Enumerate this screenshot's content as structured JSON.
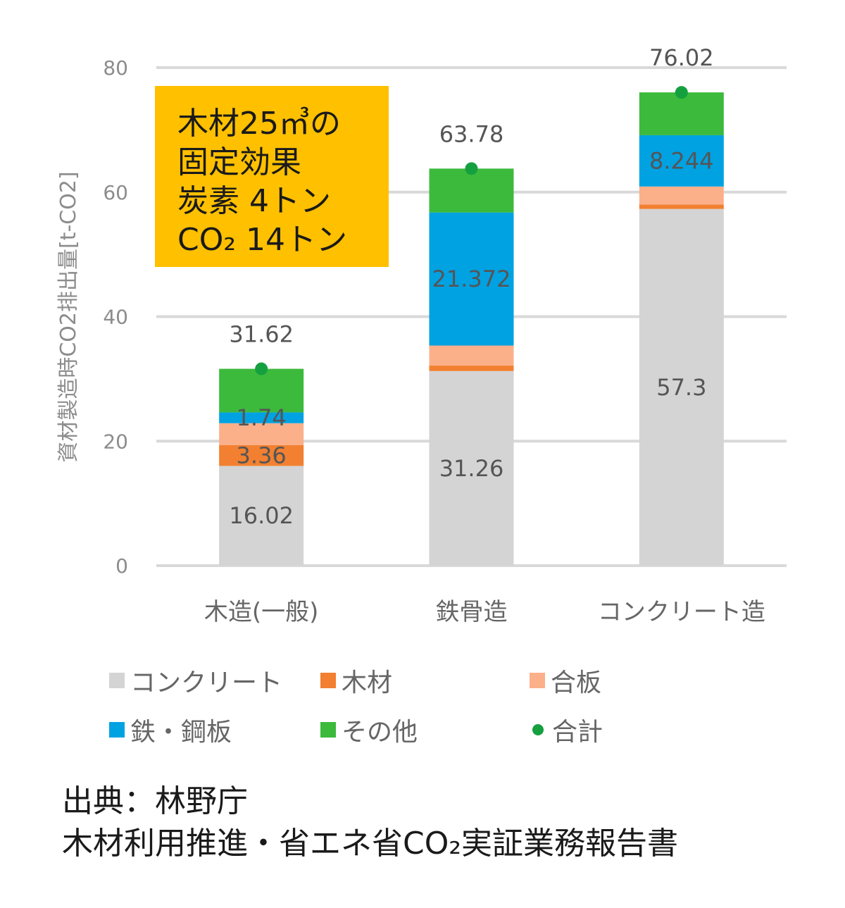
{
  "chart_data": {
    "type": "bar",
    "stacked": true,
    "categories": [
      "木造(一般)",
      "鉄骨造",
      "コンクリート造"
    ],
    "ylabel": "資材製造時CO2排出量[t-CO2]",
    "ylim": [
      0,
      80
    ],
    "yticks": [
      0,
      20,
      40,
      60,
      80
    ],
    "grid": true,
    "legend_position": "bottom",
    "series": [
      {
        "name": "コンクリート",
        "color": "#d4d4d4",
        "values": [
          16.02,
          31.26,
          57.3
        ],
        "labels": [
          "16.02",
          "31.26",
          "57.3"
        ]
      },
      {
        "name": "木材",
        "color": "#f28030",
        "values": [
          3.36,
          0.9,
          0.7
        ],
        "labels": [
          "3.36",
          "",
          ""
        ]
      },
      {
        "name": "合板",
        "color": "#fbb08a",
        "values": [
          3.5,
          3.2,
          2.9
        ],
        "labels": [
          "",
          "",
          ""
        ]
      },
      {
        "name": "鉄・鋼板",
        "color": "#00a2e2",
        "values": [
          1.74,
          21.372,
          8.244
        ],
        "labels": [
          "1.74",
          "21.372",
          "8.244"
        ]
      },
      {
        "name": "その他",
        "color": "#3cba3c",
        "values": [
          7.0,
          7.05,
          6.88
        ],
        "labels": [
          "",
          "",
          ""
        ]
      }
    ],
    "totals": {
      "name": "合計",
      "color": "#15a040",
      "values": [
        31.62,
        63.78,
        76.02
      ],
      "labels": [
        "31.62",
        "63.78",
        "76.02"
      ]
    }
  },
  "callout": {
    "lines": [
      "木材25㎥の",
      "固定効果",
      "炭素 4トン",
      "CO₂ 14トン"
    ]
  },
  "source": {
    "lines": [
      "出典：林野庁",
      "木材利用推進・省エネ省CO₂実証業務報告書"
    ]
  }
}
